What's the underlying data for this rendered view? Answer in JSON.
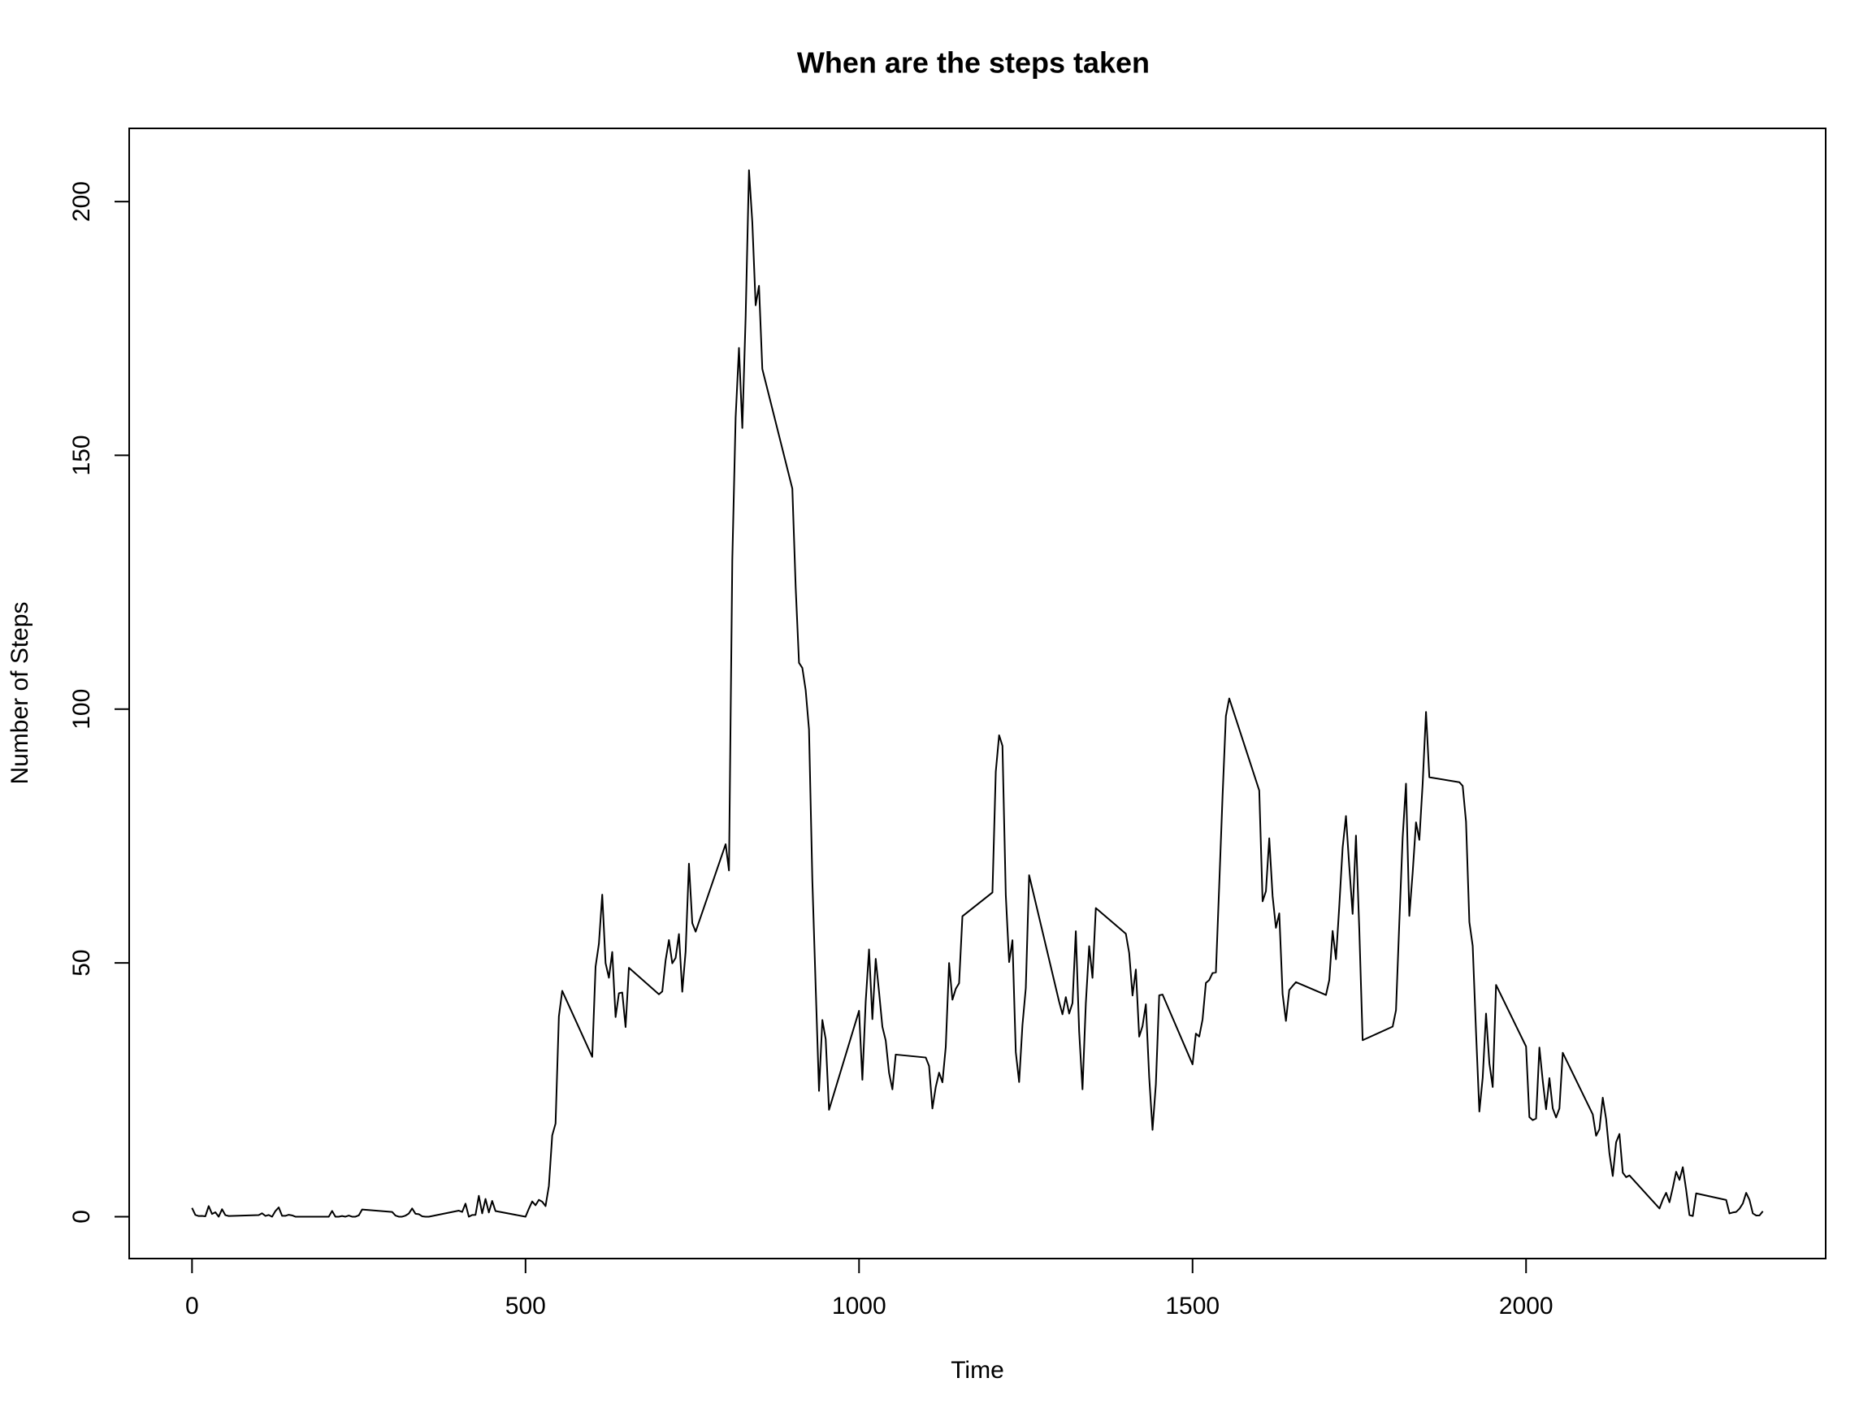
{
  "chart_data": {
    "type": "line",
    "title": "When are the steps taken",
    "x_label": "Time",
    "y_label": "Number of Steps",
    "x": [
      0,
      5,
      10,
      15,
      20,
      25,
      30,
      35,
      40,
      45,
      50,
      55,
      100,
      105,
      110,
      115,
      120,
      125,
      130,
      135,
      140,
      145,
      150,
      155,
      200,
      205,
      210,
      215,
      220,
      225,
      230,
      235,
      240,
      245,
      250,
      255,
      300,
      305,
      310,
      315,
      320,
      325,
      330,
      335,
      340,
      345,
      350,
      355,
      400,
      405,
      410,
      415,
      420,
      425,
      430,
      435,
      440,
      445,
      450,
      455,
      500,
      505,
      510,
      515,
      520,
      525,
      530,
      535,
      540,
      545,
      550,
      555,
      600,
      605,
      610,
      615,
      620,
      625,
      630,
      635,
      640,
      645,
      650,
      655,
      700,
      705,
      710,
      715,
      720,
      725,
      730,
      735,
      740,
      745,
      750,
      755,
      800,
      805,
      810,
      815,
      820,
      825,
      830,
      835,
      840,
      845,
      850,
      855,
      900,
      905,
      910,
      915,
      920,
      925,
      930,
      935,
      940,
      945,
      950,
      955,
      1000,
      1005,
      1010,
      1015,
      1020,
      1025,
      1030,
      1035,
      1040,
      1045,
      1050,
      1055,
      1100,
      1105,
      1110,
      1115,
      1120,
      1125,
      1130,
      1135,
      1140,
      1145,
      1150,
      1155,
      1200,
      1205,
      1210,
      1215,
      1220,
      1225,
      1230,
      1235,
      1240,
      1245,
      1250,
      1255,
      1300,
      1305,
      1310,
      1315,
      1320,
      1325,
      1330,
      1335,
      1340,
      1345,
      1350,
      1355,
      1400,
      1405,
      1410,
      1415,
      1420,
      1425,
      1430,
      1435,
      1440,
      1445,
      1450,
      1455,
      1500,
      1505,
      1510,
      1515,
      1520,
      1525,
      1530,
      1535,
      1540,
      1545,
      1550,
      1555,
      1600,
      1605,
      1610,
      1615,
      1620,
      1625,
      1630,
      1635,
      1640,
      1645,
      1650,
      1655,
      1700,
      1705,
      1710,
      1715,
      1720,
      1725,
      1730,
      1735,
      1740,
      1745,
      1750,
      1755,
      1800,
      1805,
      1810,
      1815,
      1820,
      1825,
      1830,
      1835,
      1840,
      1845,
      1850,
      1855,
      1900,
      1905,
      1910,
      1915,
      1920,
      1925,
      1930,
      1935,
      1940,
      1945,
      1950,
      1955,
      2000,
      2005,
      2010,
      2015,
      2020,
      2025,
      2030,
      2035,
      2040,
      2045,
      2050,
      2055,
      2100,
      2105,
      2110,
      2115,
      2120,
      2125,
      2130,
      2135,
      2140,
      2145,
      2150,
      2155,
      2200,
      2205,
      2210,
      2215,
      2220,
      2225,
      2230,
      2235,
      2240,
      2245,
      2250,
      2255,
      2300,
      2305,
      2310,
      2315,
      2320,
      2325,
      2330,
      2335,
      2340,
      2345,
      2350,
      2355
    ],
    "values": [
      1.72,
      0.34,
      0.13,
      0.15,
      0.08,
      2.09,
      0.53,
      0.87,
      0,
      1.47,
      0.3,
      0.13,
      0.32,
      0.68,
      0.15,
      0.34,
      0,
      1.11,
      1.83,
      0.17,
      0.17,
      0.38,
      0.26,
      0,
      0,
      0,
      1.13,
      0,
      0,
      0.13,
      0,
      0.23,
      0,
      0,
      0.26,
      1.42,
      0.94,
      0.23,
      0,
      0,
      0.21,
      0.62,
      1.62,
      0.58,
      0.49,
      0.08,
      0,
      0,
      1.19,
      0.94,
      2.57,
      0,
      0.34,
      0.36,
      4.11,
      0.66,
      3.49,
      0.83,
      3.11,
      1.11,
      0,
      1.57,
      3,
      2.25,
      3.32,
      2.96,
      2.09,
      6.06,
      16.02,
      18.34,
      39.45,
      44.49,
      31.49,
      49.26,
      53.77,
      63.45,
      49.96,
      47.08,
      52.15,
      39.34,
      44.02,
      44.17,
      37.36,
      49.04,
      43.81,
      44.38,
      50.51,
      54.51,
      49.92,
      50.98,
      55.68,
      44.32,
      52.26,
      69.55,
      57.85,
      56.15,
      73.38,
      68.21,
      129.43,
      157.53,
      171.15,
      155.4,
      177.3,
      206.17,
      195.92,
      179.57,
      183.4,
      167.02,
      143.45,
      124.04,
      109.11,
      108.11,
      103.72,
      95.97,
      66.21,
      45.23,
      24.79,
      38.75,
      34.98,
      21.06,
      40.57,
      26.98,
      42.42,
      52.66,
      38.92,
      50.79,
      44.28,
      37.42,
      34.7,
      28.34,
      25.09,
      31.94,
      31.36,
      29.68,
      21.32,
      25.55,
      28.38,
      26.47,
      33.43,
      49.98,
      42.75,
      44.89,
      46,
      59.19,
      63.87,
      87.7,
      94.85,
      92.77,
      63.4,
      50.17,
      54.47,
      32.42,
      26.53,
      37.74,
      45.05,
      67.28,
      42.34,
      39.88,
      43.26,
      40.02,
      42.08,
      56.25,
      36.49,
      25.1,
      42.02,
      53.31,
      47.06,
      60.81,
      55.75,
      51.96,
      43.58,
      48.7,
      35.47,
      37.55,
      41.85,
      27.51,
      17.11,
      26.08,
      43.62,
      43.77,
      30.02,
      36.08,
      35.49,
      38.85,
      46.06,
      46.62,
      48,
      48.13,
      65.32,
      82.91,
      98.66,
      102.11,
      83.96,
      62.13,
      64.13,
      74.55,
      63.17,
      56.91,
      59.77,
      43.87,
      38.57,
      44.66,
      45.45,
      46.21,
      43.68,
      46.62,
      56.3,
      50.72,
      61.23,
      72.72,
      78.94,
      68.94,
      59.66,
      75.09,
      56.51,
      34.77,
      37.45,
      40.68,
      58.02,
      74.7,
      85.32,
      59.26,
      67.77,
      77.7,
      74.25,
      85.34,
      99.45,
      86.58,
      85.6,
      84.87,
      77.83,
      58.04,
      53.36,
      36.33,
      20.72,
      27.4,
      40.02,
      30.21,
      25.55,
      45.66,
      33.53,
      19.62,
      19.02,
      19.34,
      33.34,
      26.81,
      21.17,
      27.3,
      21.34,
      19.55,
      21.32,
      32.3,
      20.15,
      15.94,
      17.23,
      23.45,
      19.25,
      12.45,
      8.02,
      14.66,
      16.3,
      8.68,
      7.79,
      8.13,
      1.62,
      3.36,
      4.7,
      2.85,
      5.7,
      8.85,
      7.25,
      9.75,
      5.3,
      0.3,
      0.13,
      4.6,
      3.3,
      0.64,
      0.83,
      0.94,
      1.59,
      2.6,
      4.7,
      3.3,
      0.64,
      0.23,
      0.26,
      1.08
    ],
    "color": "#000000",
    "xlim": [
      -94.2,
      2449.2
    ],
    "xticks": [
      0,
      500,
      1000,
      1500,
      2000
    ],
    "ylim": [
      -8.25,
      214.42
    ],
    "yticks": [
      0,
      50,
      100,
      150,
      200
    ]
  }
}
